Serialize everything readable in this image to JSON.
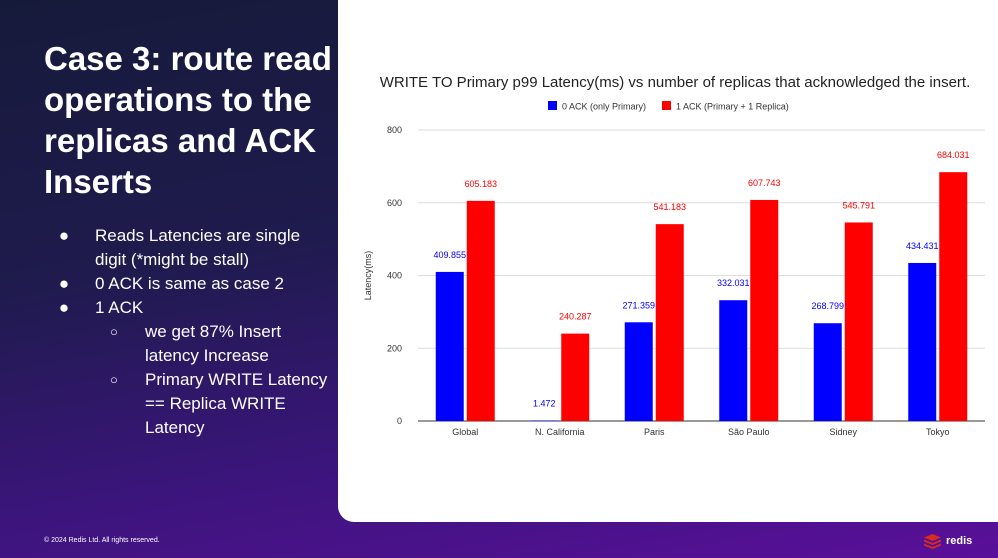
{
  "slide": {
    "title": "Case 3: route read operations to the replicas and ACK Inserts",
    "bullets": [
      {
        "text": "Reads Latencies are single digit (*might be stall)",
        "level": 1
      },
      {
        "text": "0 ACK is same as case 2",
        "level": 1
      },
      {
        "text": "1 ACK",
        "level": 1
      },
      {
        "text": "we get 87% Insert latency Increase",
        "level": 2
      },
      {
        "text": "Primary WRITE Latency == Replica WRITE Latency",
        "level": 2
      }
    ]
  },
  "footer": {
    "copyright": "© 2024 Redis Ltd. All rights reserved.",
    "logo_text": "redis"
  },
  "colors": {
    "series_0": "#0000ff",
    "series_1": "#ff0000",
    "brand_red": "#d82c20"
  },
  "chart_data": {
    "type": "bar",
    "title": "WRITE TO Primary p99 Latency(ms) vs number of replicas that acknowledged the insert.",
    "xlabel": "",
    "ylabel": "Latency(ms)",
    "ylim": [
      0,
      800
    ],
    "yticks": [
      0,
      200,
      400,
      600,
      800
    ],
    "grid": true,
    "legend_position": "top",
    "categories": [
      "Global",
      "N. California",
      "Paris",
      "São Paulo",
      "Sidney",
      "Tokyo"
    ],
    "series": [
      {
        "name": "0 ACK (only Primary)",
        "values": [
          409.855,
          1.472,
          271.359,
          332.031,
          268.799,
          434.431
        ],
        "labels": [
          "409.855",
          "1.472",
          "271.359",
          "332.031",
          "268.799",
          "434.431"
        ]
      },
      {
        "name": "1 ACK (Primary + 1 Replica)",
        "values": [
          605.183,
          240.287,
          541.183,
          607.743,
          545.791,
          684.031
        ],
        "labels": [
          "605.183",
          "240.287",
          "541.183",
          "607.743",
          "545.791",
          "684.031"
        ]
      }
    ]
  }
}
